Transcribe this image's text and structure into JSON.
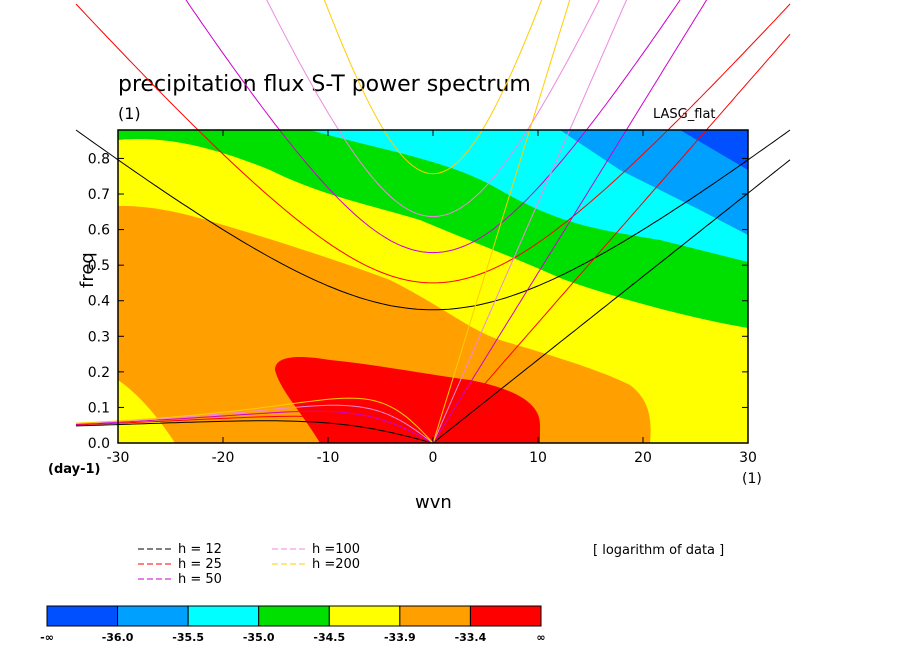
{
  "chart_data": {
    "type": "contour",
    "title": "precipitation flux S-T power spectrum",
    "title_unit": "(1)",
    "model_label": "LASG_flat",
    "xlabel": "wvn",
    "ylabel": "freq",
    "x_unit": "(1)",
    "y_unit": "(day-1)",
    "xlim": [
      -30,
      30
    ],
    "ylim": [
      0,
      0.88
    ],
    "xticks": [
      "-30",
      "-20",
      "-10",
      "0",
      "10",
      "20",
      "30"
    ],
    "yticks": [
      "0.0",
      "0.1",
      "0.2",
      "0.3",
      "0.4",
      "0.5",
      "0.6",
      "0.7",
      "0.8"
    ],
    "note": "[ logarithm of data ]",
    "legend": [
      {
        "label": "h = 12",
        "color": "#000000"
      },
      {
        "label": "h = 25",
        "color": "#ff0000"
      },
      {
        "label": "h = 50",
        "color": "#cc00cc"
      },
      {
        "label": "h =100",
        "color": "#ee88dd"
      },
      {
        "label": "h =200",
        "color": "#ffcc00"
      }
    ],
    "colorbar": {
      "colors": [
        "#0050ff",
        "#00a0ff",
        "#00ffff",
        "#00e000",
        "#ffff00",
        "#ffa000",
        "#ff0000"
      ],
      "labels": [
        "-∞",
        "-36.0",
        "-35.5",
        "-35.0",
        "-34.5",
        "-33.9",
        "-33.4",
        "∞"
      ]
    },
    "dispersion_curves": [
      {
        "name": "h = 12",
        "equivalent_depth": 12
      },
      {
        "name": "h = 25",
        "equivalent_depth": 25
      },
      {
        "name": "h = 50",
        "equivalent_depth": 50
      },
      {
        "name": "h =100",
        "equivalent_depth": 100
      },
      {
        "name": "h =200",
        "equivalent_depth": 200
      }
    ]
  }
}
